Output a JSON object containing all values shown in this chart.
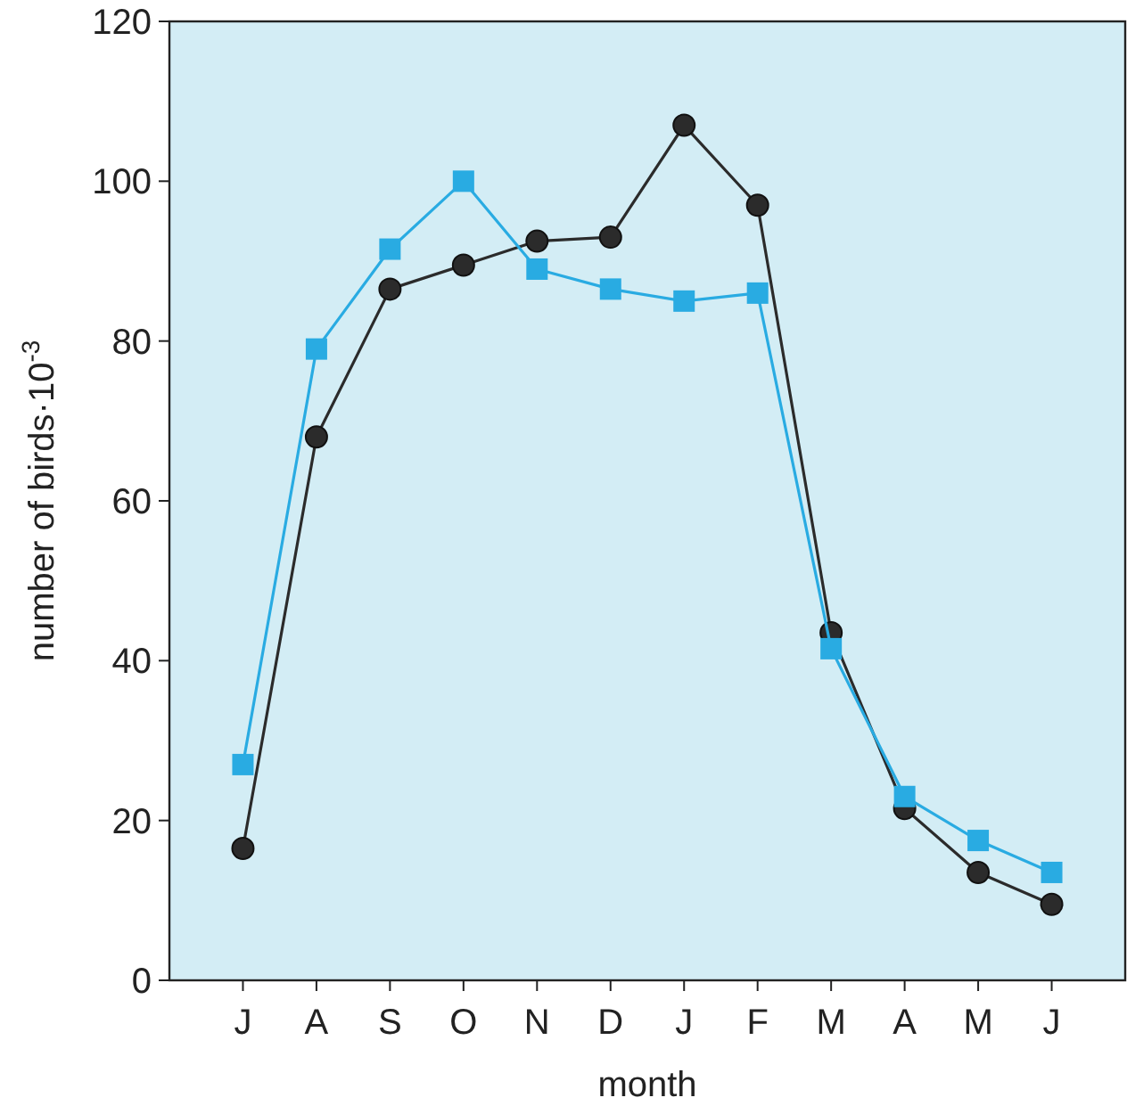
{
  "chart_data": {
    "type": "line",
    "xlabel": "month",
    "ylabel": "number of birds·10$^{-3}$",
    "categories": [
      "J",
      "A",
      "S",
      "O",
      "N",
      "D",
      "J",
      "F",
      "M",
      "A",
      "M",
      "J"
    ],
    "series": [
      {
        "color": "#2b2b2b",
        "marker": "circle",
        "values": [
          16.5,
          68,
          86.5,
          89.5,
          92.5,
          93,
          107,
          97,
          43.5,
          21.5,
          13.5,
          9.5
        ]
      },
      {
        "color": "#29abe2",
        "marker": "square",
        "values": [
          27,
          79,
          91.5,
          100,
          89,
          86.5,
          85,
          86,
          41.5,
          23,
          17.5,
          13.5
        ]
      }
    ],
    "ylim": [
      0,
      120
    ],
    "yticks": [
      0,
      20,
      40,
      60,
      80,
      100,
      120
    ],
    "grid": false,
    "line_style": "solid"
  }
}
